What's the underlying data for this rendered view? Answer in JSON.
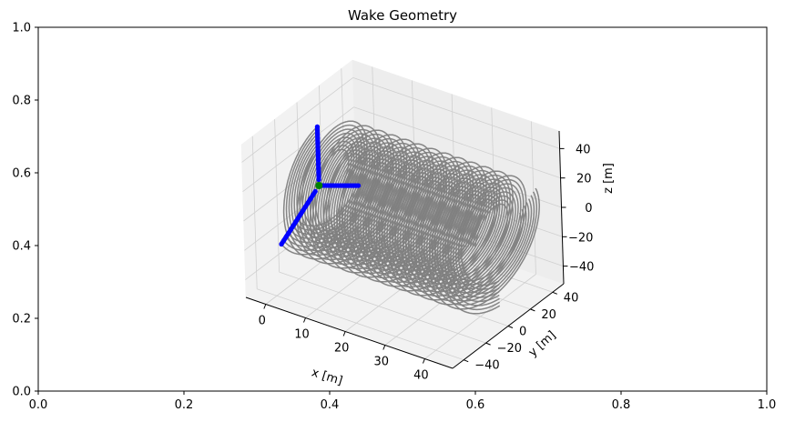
{
  "chart_data": [
    {
      "type": "line",
      "title": "Wake Geometry",
      "xlabel": "",
      "ylabel": "",
      "xlim": [
        0.0,
        1.0
      ],
      "ylim": [
        0.0,
        1.0
      ],
      "xticks": [
        "0.0",
        "0.2",
        "0.4",
        "0.6",
        "0.8",
        "1.0"
      ],
      "yticks": [
        "0.0",
        "0.2",
        "0.4",
        "0.6",
        "0.8",
        "1.0"
      ],
      "series": []
    },
    {
      "type": "line",
      "projection": "3d",
      "title": "",
      "xlabel": "x [m]",
      "ylabel": "y [m]",
      "zlabel": "z [m]",
      "xlim": [
        -5,
        47
      ],
      "ylim": [
        -50,
        50
      ],
      "zlim": [
        -52,
        52
      ],
      "xticks": [
        "0",
        "10",
        "20",
        "30",
        "40"
      ],
      "yticks": [
        "-40",
        "-20",
        "0",
        "20",
        "40"
      ],
      "zticks": [
        "-40",
        "-20",
        "0",
        "20",
        "40"
      ],
      "grid": true,
      "rotor_radius_m": 40,
      "blade_angles_deg": [
        90,
        210,
        330
      ],
      "wake_helix_pitch_m": 10,
      "wake_length_m": 45,
      "wake_color": "#808080",
      "blade_color": "#0000ff",
      "hub_color": "#008000"
    }
  ]
}
